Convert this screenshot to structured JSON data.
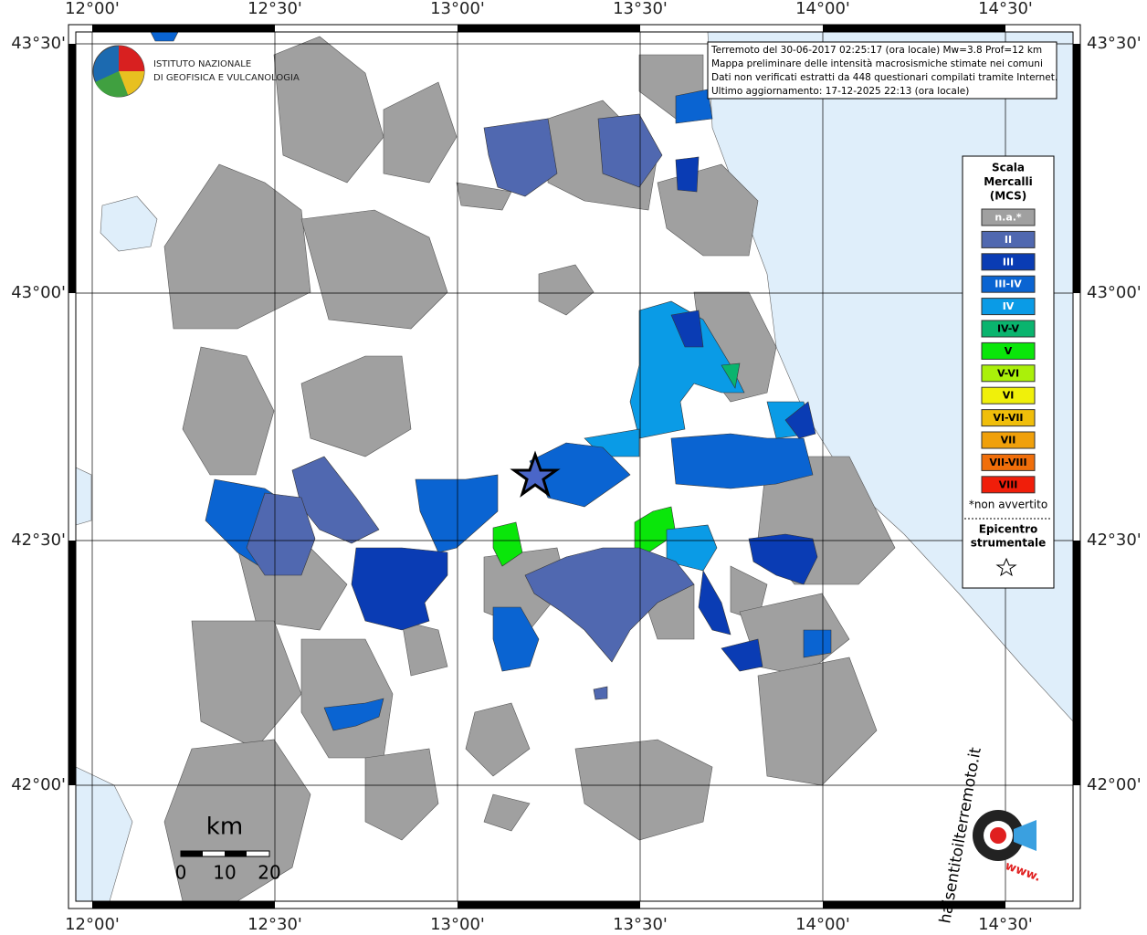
{
  "header": {
    "logo_line1": "ISTITUTO NAZIONALE",
    "logo_line2": "DI GEOFISICA E VULCANOLOGIA"
  },
  "info": {
    "lines": [
      "Terremoto del 30-06-2017 02:25:17 (ora locale) Mw=3.8 Prof=12 km",
      "Mappa preliminare delle intensità macrosismiche stimate nei comuni",
      "Dati non verificati estratti da 448 questionari compilati tramite Internet.",
      "Ultimo aggiornamento: 17-12-2025 22:13 (ora locale)"
    ]
  },
  "x_labels": [
    "12°00'",
    "12°30'",
    "13°00'",
    "13°30'",
    "14°00'",
    "14°30'"
  ],
  "y_labels": [
    "43°30'",
    "43°00'",
    "42°30'",
    "42°00'"
  ],
  "legend": {
    "title": [
      "Scala",
      "Mercalli",
      "(MCS)"
    ],
    "items": [
      {
        "label": "n.a.*",
        "color": "#a0a0a0"
      },
      {
        "label": "II",
        "color": "#5068b0"
      },
      {
        "label": "III",
        "color": "#0a3cb4"
      },
      {
        "label": "III-IV",
        "color": "#0a64d2"
      },
      {
        "label": "IV",
        "color": "#0a9be6"
      },
      {
        "label": "IV-V",
        "color": "#0ab46e"
      },
      {
        "label": "V",
        "color": "#0ae60a"
      },
      {
        "label": "V-VI",
        "color": "#aaf00a"
      },
      {
        "label": "VI",
        "color": "#f0f00a"
      },
      {
        "label": "VI-VII",
        "color": "#f0be0a"
      },
      {
        "label": "VII",
        "color": "#f0a00a"
      },
      {
        "label": "VII-VIII",
        "color": "#f06e0a"
      },
      {
        "label": "VIII",
        "color": "#f01e0a"
      }
    ],
    "note": "*non avvertito",
    "epicenter": [
      "Epicentro",
      "strumentale"
    ]
  },
  "scale": {
    "unit": "km",
    "ticks": [
      "0",
      "10",
      "20"
    ]
  },
  "watermark": {
    "site": "haisentitoilterremoto.it",
    "www": "www."
  }
}
